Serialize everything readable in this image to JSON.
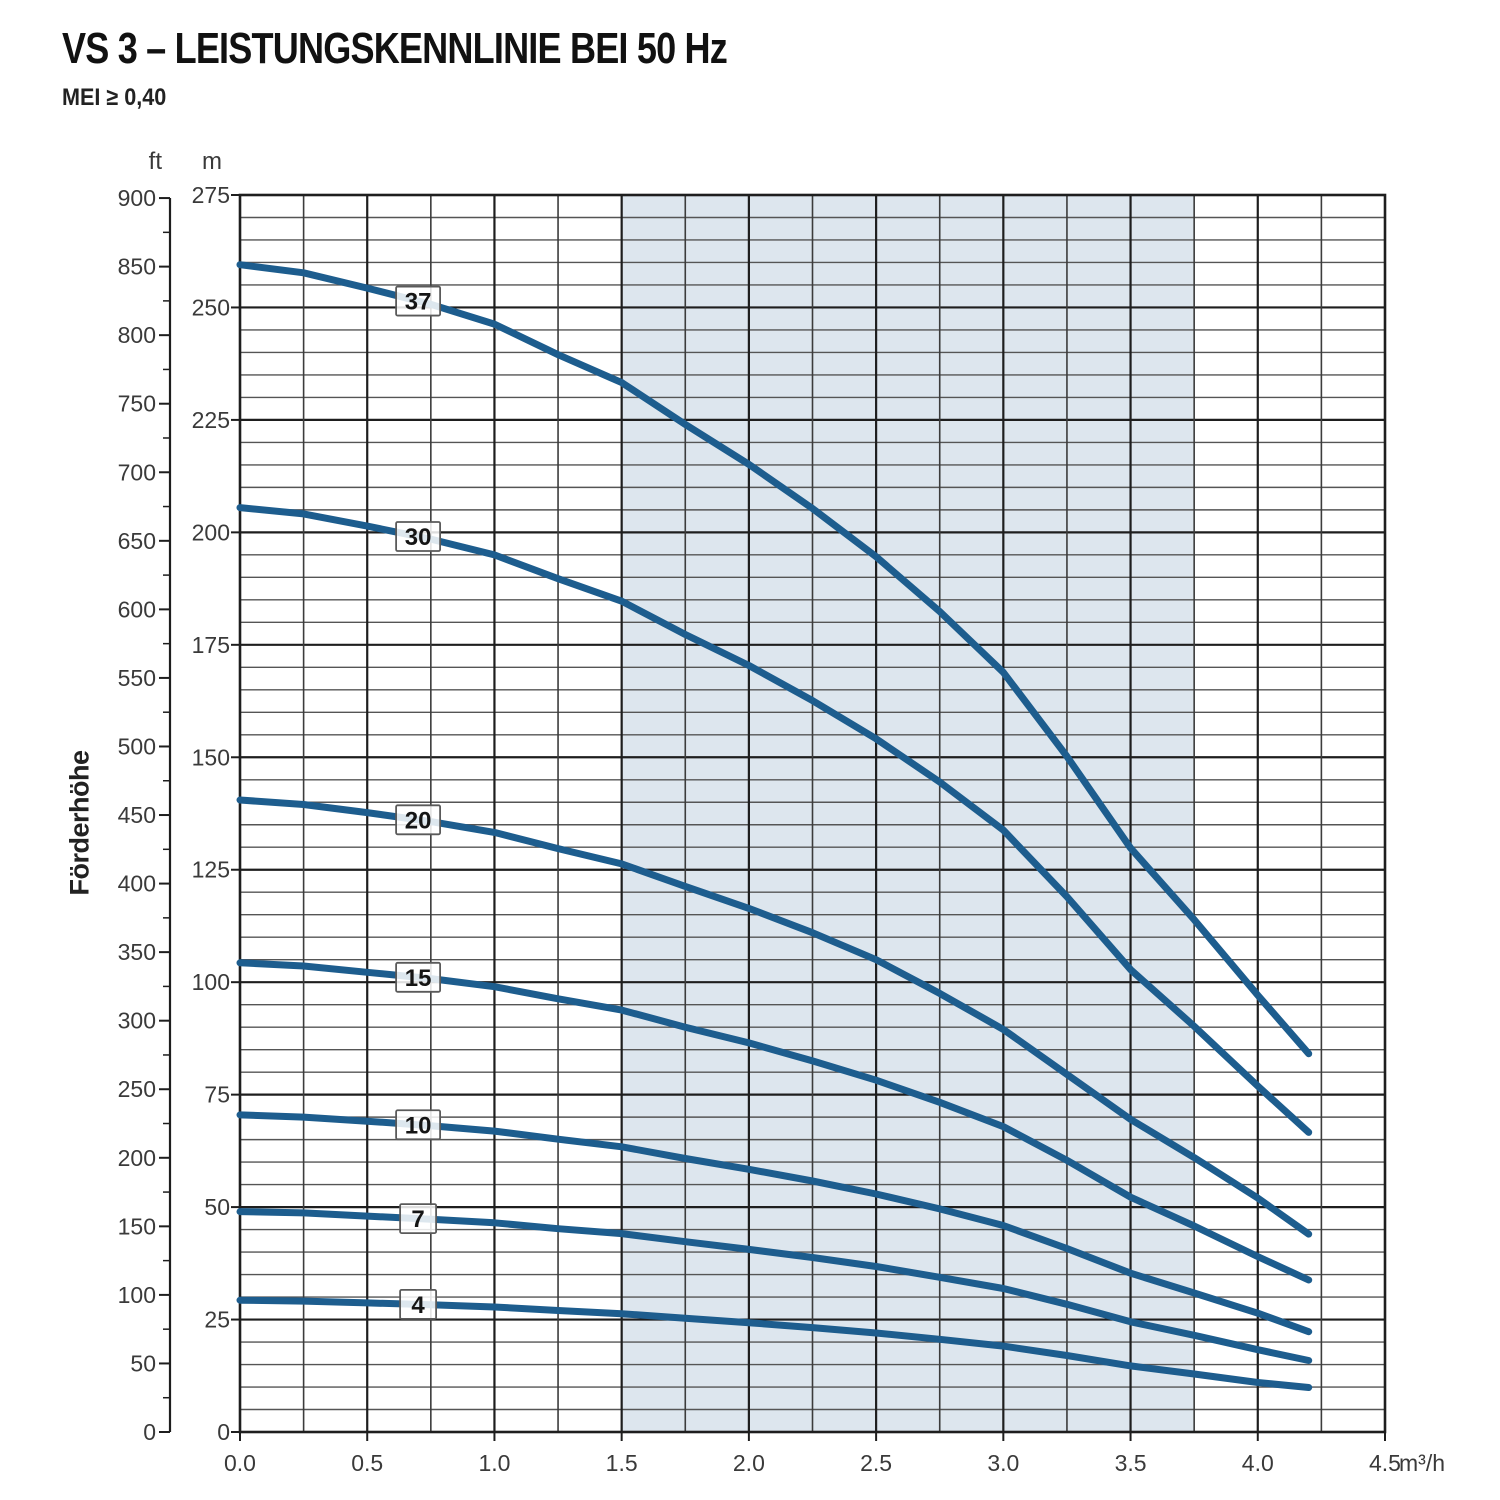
{
  "title": "VS 3 – LEISTUNGSKENNLINIE BEI 50 Hz",
  "subtitle": "MEI ≥ 0,40",
  "colors": {
    "curve": "#1d5d8e",
    "band": "#dde6ee",
    "grid_minor_h": "#555555",
    "grid_minor_v": "#3c3c3c",
    "grid_major": "#1e1e1e",
    "text": "#3a3a3a",
    "label_box_border": "#5a5a5a"
  },
  "chart_data": {
    "type": "line",
    "title": "VS 3 – LEISTUNGSKENNLINIE BEI 50 Hz",
    "ylabel": "Förderhöhe",
    "y_units": [
      "ft",
      "m"
    ],
    "x_unit": "m³/h",
    "xlim": [
      0,
      4.5
    ],
    "ylim_m": [
      0,
      275
    ],
    "ylim_ft": [
      0,
      900
    ],
    "grid": "on",
    "operating_band": [
      1.5,
      3.75
    ],
    "x_ticks": [
      "0.0",
      "0.5",
      "1.0",
      "1.5",
      "2.0",
      "2.5",
      "3.0",
      "3.5",
      "4.0",
      "4.5"
    ],
    "m_ticks": [
      275,
      250,
      225,
      200,
      175,
      150,
      125,
      100,
      75,
      50,
      25,
      0
    ],
    "ft_ticks": [
      900,
      850,
      800,
      750,
      700,
      650,
      600,
      550,
      500,
      450,
      400,
      350,
      300,
      250,
      200,
      150,
      100,
      50,
      0
    ],
    "x": [
      0,
      0.25,
      0.5,
      0.75,
      1.0,
      1.25,
      1.5,
      1.75,
      2.0,
      2.25,
      2.5,
      2.75,
      3.0,
      3.25,
      3.5,
      3.75,
      4.0,
      4.2
    ],
    "series": [
      {
        "name": "37",
        "values": [
          259.5,
          257.7,
          254.3,
          250.7,
          246.3,
          239.5,
          233.3,
          224.0,
          215.1,
          205.3,
          194.6,
          182.4,
          168.9,
          150.2,
          129.8,
          113.9,
          97.1,
          84.1
        ]
      },
      {
        "name": "30",
        "values": [
          205.5,
          204.1,
          201.4,
          198.5,
          195.0,
          189.7,
          184.7,
          177.3,
          170.4,
          162.6,
          154.1,
          144.5,
          133.8,
          119.0,
          102.8,
          90.2,
          76.9,
          66.6
        ]
      },
      {
        "name": "20",
        "values": [
          140.5,
          139.5,
          137.7,
          135.7,
          133.3,
          129.7,
          126.3,
          121.3,
          116.4,
          111.0,
          105.0,
          97.5,
          89.5,
          79.5,
          69.5,
          61.0,
          52.0,
          44.0
        ]
      },
      {
        "name": "15",
        "values": [
          104.3,
          103.6,
          102.2,
          100.8,
          99.0,
          96.3,
          93.8,
          90.0,
          86.5,
          82.5,
          78.2,
          73.3,
          67.9,
          60.4,
          52.2,
          45.8,
          39.0,
          33.8
        ]
      },
      {
        "name": "10",
        "values": [
          70.5,
          70.0,
          69.1,
          68.1,
          66.9,
          65.1,
          63.4,
          60.8,
          58.4,
          55.8,
          52.9,
          49.6,
          45.9,
          40.8,
          35.3,
          30.9,
          26.4,
          22.3
        ]
      },
      {
        "name": "7",
        "values": [
          49.0,
          48.7,
          48.0,
          47.3,
          46.5,
          45.2,
          44.1,
          42.3,
          40.6,
          38.8,
          36.8,
          34.4,
          31.9,
          28.4,
          24.5,
          21.5,
          18.3,
          15.9
        ]
      },
      {
        "name": "4",
        "values": [
          29.3,
          29.1,
          28.7,
          28.3,
          27.8,
          27.0,
          26.3,
          25.3,
          24.3,
          23.2,
          22.0,
          20.6,
          19.1,
          17.0,
          14.7,
          12.9,
          11.0,
          9.9
        ]
      }
    ],
    "curve_label_position_q": 0.7
  }
}
